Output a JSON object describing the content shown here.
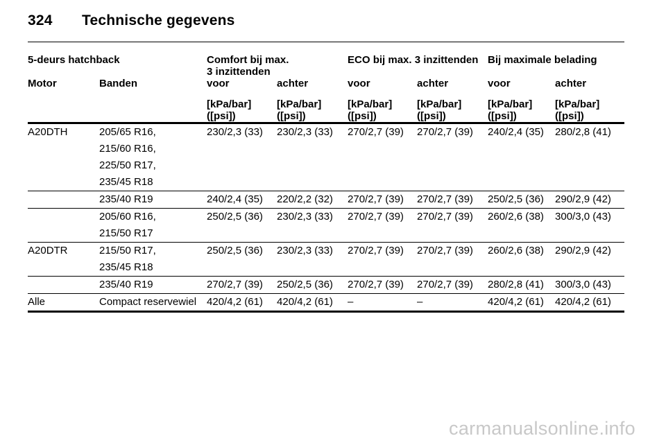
{
  "header": {
    "page_number": "324",
    "title": "Technische gegevens"
  },
  "table": {
    "vehicle": "5-deurs hatchback",
    "groups": [
      {
        "label": "Comfort bij max.\n3 inzittenden"
      },
      {
        "label": "ECO bij max. 3 inzittenden"
      },
      {
        "label": "Bij maximale belading"
      }
    ],
    "columns": {
      "motor": "Motor",
      "banden": "Banden",
      "voor": "voor",
      "achter": "achter"
    },
    "unit": "[kPa/bar]\n([psi])",
    "rows": [
      {
        "motor": "A20DTH",
        "tires": [
          "205/65 R16,",
          "215/60 R16,",
          "225/50 R17,",
          "235/45 R18"
        ],
        "values": [
          "230/2,3 (33)",
          "230/2,3 (33)",
          "270/2,7 (39)",
          "270/2,7 (39)",
          "240/2,4 (35)",
          "280/2,8 (41)"
        ]
      },
      {
        "motor": "",
        "tires": [
          "235/40 R19"
        ],
        "values": [
          "240/2,4 (35)",
          "220/2,2 (32)",
          "270/2,7 (39)",
          "270/2,7 (39)",
          "250/2,5 (36)",
          "290/2,9 (42)"
        ]
      },
      {
        "motor": "",
        "tires": [
          "205/60 R16,",
          "215/50 R17"
        ],
        "values": [
          "250/2,5 (36)",
          "230/2,3 (33)",
          "270/2,7 (39)",
          "270/2,7 (39)",
          "260/2,6 (38)",
          "300/3,0 (43)"
        ]
      },
      {
        "motor": "A20DTR",
        "tires": [
          "215/50 R17,",
          "235/45 R18"
        ],
        "values": [
          "250/2,5 (36)",
          "230/2,3 (33)",
          "270/2,7 (39)",
          "270/2,7 (39)",
          "260/2,6 (38)",
          "290/2,9 (42)"
        ]
      },
      {
        "motor": "",
        "tires": [
          "235/40 R19"
        ],
        "values": [
          "270/2,7 (39)",
          "250/2,5 (36)",
          "270/2,7 (39)",
          "270/2,7 (39)",
          "280/2,8 (41)",
          "300/3,0 (43)"
        ]
      },
      {
        "motor": "Alle",
        "tires": [
          "Compact reservewiel"
        ],
        "values": [
          "420/4,2 (61)",
          "420/4,2 (61)",
          "–",
          "–",
          "420/4,2 (61)",
          "420/4,2 (61)"
        ]
      }
    ]
  },
  "watermark": "carmanualsonline.info"
}
